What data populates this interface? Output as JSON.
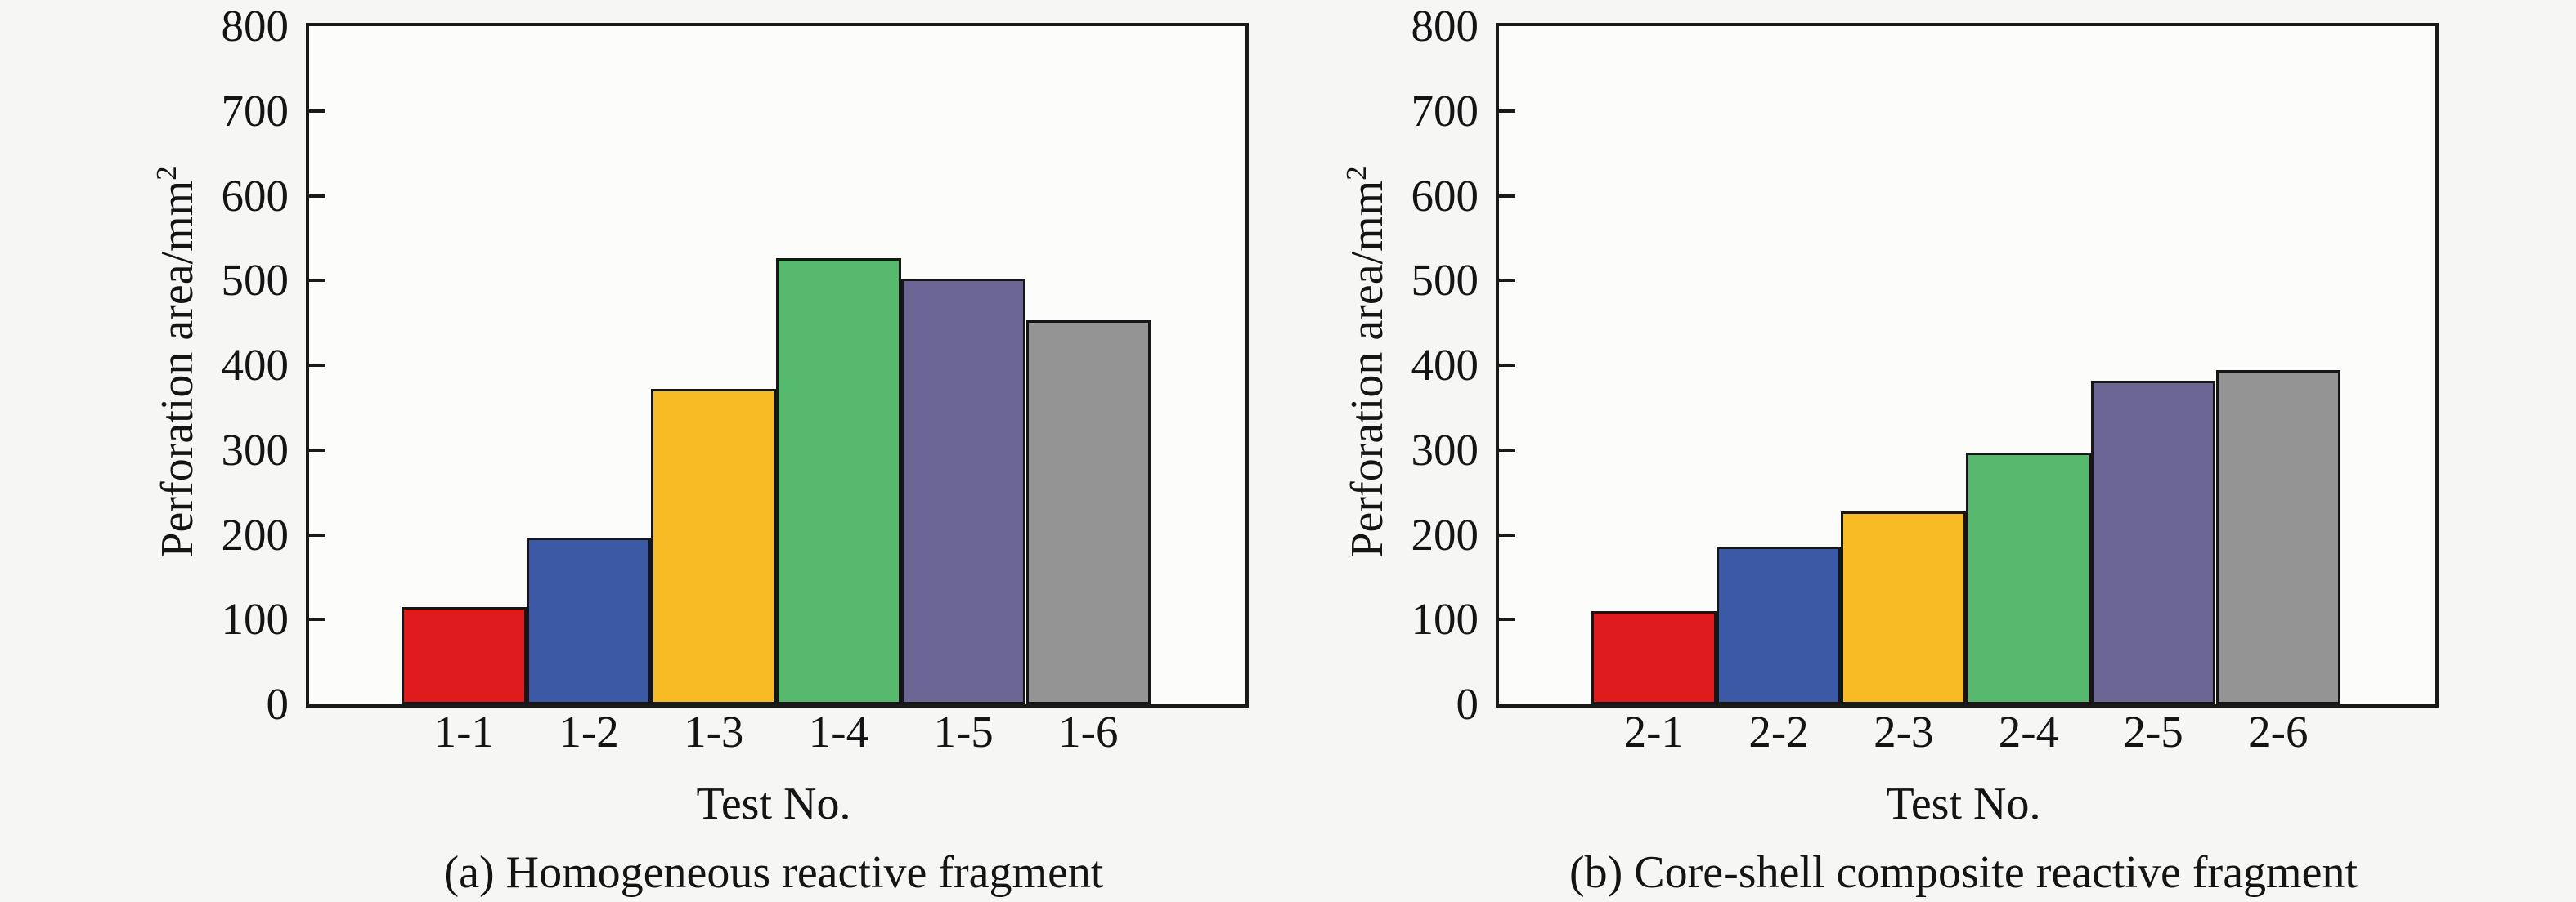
{
  "figure": {
    "background_color": "#f6f6f5",
    "plot_background_color": "#fcfcfb",
    "axis_color": "#1a1a1a",
    "text_color": "#141414"
  },
  "chart_data": [
    {
      "type": "bar",
      "panel": "a",
      "title": "(a) Homogeneous reactive fragment",
      "xlabel": "Test No.",
      "ylabel": "Perforation area/mm²",
      "ylabel_base": "Perforation area/mm",
      "ylabel_exp": "2",
      "categories": [
        "1-1",
        "1-2",
        "1-3",
        "1-4",
        "1-5",
        "1-6"
      ],
      "values": [
        115,
        197,
        372,
        526,
        502,
        453
      ],
      "ylim": [
        0,
        800
      ],
      "ytick_step": 100,
      "ytick_labels": [
        "0",
        "100",
        "200",
        "300",
        "400",
        "500",
        "600",
        "700",
        "800"
      ],
      "bar_colors": [
        "#e01b1e",
        "#3c59a6",
        "#f7bb24",
        "#56b96d",
        "#6b6694",
        "#949494"
      ],
      "bar_outline_color": "#161616",
      "grid": false,
      "legend": null
    },
    {
      "type": "bar",
      "panel": "b",
      "title": "(b) Core-shell composite reactive fragment",
      "xlabel": "Test No.",
      "ylabel": "Perforation area/mm²",
      "ylabel_base": "Perforation area/mm",
      "ylabel_exp": "2",
      "categories": [
        "2-1",
        "2-2",
        "2-3",
        "2-4",
        "2-5",
        "2-6"
      ],
      "values": [
        110,
        186,
        227,
        297,
        382,
        394
      ],
      "ylim": [
        0,
        800
      ],
      "ytick_step": 100,
      "ytick_labels": [
        "0",
        "100",
        "200",
        "300",
        "400",
        "500",
        "600",
        "700",
        "800"
      ],
      "bar_colors": [
        "#e01b1e",
        "#3c59a6",
        "#f7bb24",
        "#56b96d",
        "#6b6694",
        "#949494"
      ],
      "bar_outline_color": "#161616",
      "grid": false,
      "legend": null
    }
  ]
}
